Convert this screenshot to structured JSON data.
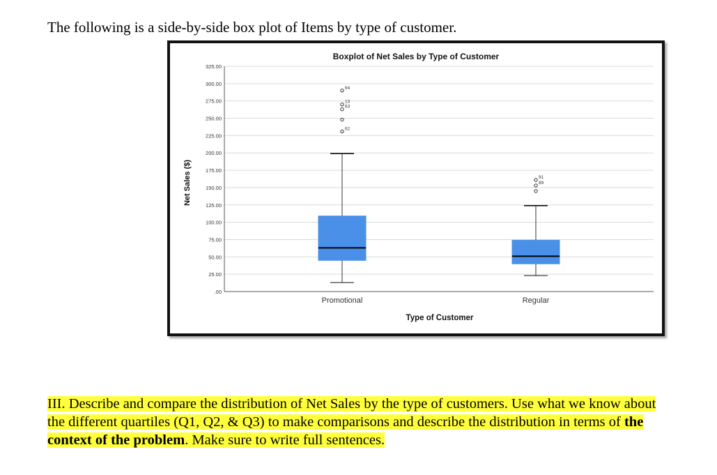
{
  "document": {
    "intro": "The following is a side-by-side box plot of Items by type of customer.",
    "question": {
      "part1": "III.  Describe and compare the distribution of Net Sales by the type of customers. Use what we know about the different quartiles (Q1, Q2, & Q3) to make comparisons and describe the distribution in terms of ",
      "bold": "the context of the problem",
      "part2": ". Make sure to write full sentences."
    },
    "highlight_color": "#ffff3b"
  },
  "chart_data": {
    "type": "boxplot",
    "title": "Boxplot of Net Sales by Type of Customer",
    "xlabel": "Type of Customer",
    "ylabel": "Net Sales ($)",
    "ylim": [
      0,
      325
    ],
    "yticks": [
      0,
      25,
      50,
      75,
      100,
      125,
      150,
      175,
      200,
      225,
      250,
      275,
      300,
      325
    ],
    "ytick_labels": [
      ".00",
      "25.00",
      "50.00",
      "75.00",
      "100.00",
      "125.00",
      "150.00",
      "175.00",
      "200.00",
      "225.00",
      "250.00",
      "275.00",
      "300.00",
      "325.00"
    ],
    "grid": true,
    "box_color": "#4a90e8",
    "groups": [
      {
        "category": "Promotional",
        "whisker_low": 13,
        "q1": 45,
        "median": 63,
        "q3": 109,
        "whisker_high": 199,
        "outliers": [
          {
            "value": 290,
            "label": "64"
          },
          {
            "value": 270,
            "label": "13"
          },
          {
            "value": 263,
            "label": "63"
          },
          {
            "value": 248,
            "label": ""
          },
          {
            "value": 231,
            "label": "62"
          }
        ]
      },
      {
        "category": "Regular",
        "whisker_low": 23,
        "q1": 40,
        "median": 51,
        "q3": 74,
        "whisker_high": 124,
        "outliers": [
          {
            "value": 161,
            "label": "91"
          },
          {
            "value": 153,
            "label": "89"
          },
          {
            "value": 145,
            "label": ""
          }
        ]
      }
    ]
  }
}
